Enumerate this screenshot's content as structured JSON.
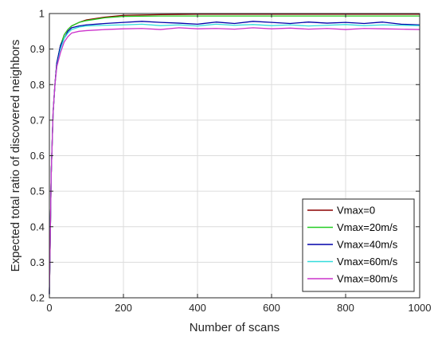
{
  "chart_data": {
    "type": "line",
    "title": "",
    "xlabel": "Number of scans",
    "ylabel": "Expected total ratio of discovered neighbors",
    "xlim": [
      0,
      1000
    ],
    "ylim": [
      0.2,
      1.0
    ],
    "xticks": [
      0,
      200,
      400,
      600,
      800,
      1000
    ],
    "yticks": [
      0.2,
      0.3,
      0.4,
      0.5,
      0.6,
      0.7,
      0.8,
      0.9,
      1.0
    ],
    "xtick_labels": [
      "0",
      "200",
      "400",
      "600",
      "800",
      "1000"
    ],
    "ytick_labels": [
      "0.2",
      "0.3",
      "0.4",
      "0.5",
      "0.6",
      "0.7",
      "0.8",
      "0.9",
      "1"
    ],
    "grid": true,
    "legend_position": "bottom-right",
    "series": [
      {
        "name": "Vmax=0",
        "color": "#8B0000",
        "x": [
          0,
          5,
          10,
          15,
          20,
          30,
          40,
          50,
          60,
          80,
          100,
          150,
          200,
          300,
          400,
          500,
          600,
          700,
          800,
          900,
          1000
        ],
        "y": [
          0.21,
          0.55,
          0.72,
          0.8,
          0.86,
          0.91,
          0.94,
          0.955,
          0.965,
          0.975,
          0.982,
          0.99,
          0.995,
          0.997,
          0.998,
          0.998,
          0.998,
          0.998,
          0.998,
          0.998,
          0.998
        ]
      },
      {
        "name": "Vmax=20m/s",
        "color": "#22CC22",
        "x": [
          0,
          5,
          10,
          15,
          20,
          30,
          40,
          50,
          60,
          80,
          100,
          150,
          200,
          300,
          400,
          500,
          600,
          700,
          800,
          900,
          1000
        ],
        "y": [
          0.21,
          0.55,
          0.72,
          0.8,
          0.86,
          0.91,
          0.94,
          0.955,
          0.965,
          0.975,
          0.98,
          0.988,
          0.992,
          0.993,
          0.993,
          0.993,
          0.993,
          0.993,
          0.993,
          0.993,
          0.993
        ]
      },
      {
        "name": "Vmax=40m/s",
        "color": "#0000AA",
        "x": [
          0,
          5,
          10,
          15,
          20,
          30,
          40,
          50,
          60,
          80,
          100,
          150,
          200,
          250,
          300,
          350,
          400,
          450,
          500,
          550,
          600,
          650,
          700,
          750,
          800,
          850,
          900,
          950,
          1000
        ],
        "y": [
          0.21,
          0.55,
          0.72,
          0.8,
          0.86,
          0.91,
          0.93,
          0.95,
          0.96,
          0.965,
          0.968,
          0.972,
          0.975,
          0.978,
          0.975,
          0.973,
          0.97,
          0.976,
          0.972,
          0.978,
          0.975,
          0.972,
          0.976,
          0.973,
          0.975,
          0.972,
          0.976,
          0.97,
          0.968
        ]
      },
      {
        "name": "Vmax=60m/s",
        "color": "#33DDDD",
        "x": [
          0,
          5,
          10,
          15,
          20,
          30,
          40,
          50,
          60,
          80,
          100,
          150,
          200,
          250,
          300,
          350,
          400,
          450,
          500,
          550,
          600,
          650,
          700,
          750,
          800,
          850,
          900,
          950,
          1000
        ],
        "y": [
          0.21,
          0.55,
          0.72,
          0.8,
          0.85,
          0.9,
          0.93,
          0.945,
          0.955,
          0.962,
          0.965,
          0.967,
          0.968,
          0.97,
          0.966,
          0.968,
          0.965,
          0.97,
          0.967,
          0.969,
          0.966,
          0.968,
          0.965,
          0.967,
          0.969,
          0.966,
          0.968,
          0.967,
          0.966
        ]
      },
      {
        "name": "Vmax=80m/s",
        "color": "#CC33CC",
        "x": [
          0,
          5,
          10,
          15,
          20,
          30,
          40,
          50,
          60,
          80,
          100,
          150,
          200,
          250,
          300,
          350,
          400,
          450,
          500,
          550,
          600,
          650,
          700,
          750,
          800,
          850,
          900,
          950,
          1000
        ],
        "y": [
          0.21,
          0.55,
          0.72,
          0.8,
          0.85,
          0.89,
          0.92,
          0.935,
          0.945,
          0.95,
          0.952,
          0.955,
          0.957,
          0.958,
          0.955,
          0.96,
          0.957,
          0.958,
          0.956,
          0.96,
          0.957,
          0.959,
          0.956,
          0.958,
          0.955,
          0.958,
          0.957,
          0.956,
          0.955
        ]
      }
    ]
  }
}
